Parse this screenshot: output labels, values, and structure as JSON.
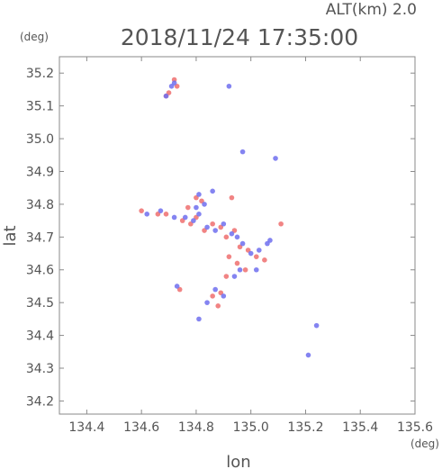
{
  "header": {
    "altitude_label": "ALT(km)  2.0",
    "timestamp": "2018/11/24 17:35:00",
    "y_unit": "(deg)",
    "x_unit": "(deg)"
  },
  "chart_data": {
    "type": "scatter",
    "title": "",
    "xlabel": "lon",
    "ylabel": "lat",
    "xlim": [
      134.3,
      135.6
    ],
    "ylim": [
      34.16,
      35.25
    ],
    "xticks": [
      "134.4",
      "134.6",
      "134.8",
      "135.0",
      "135.2",
      "135.4",
      "135.6"
    ],
    "yticks": [
      "34.2",
      "34.3",
      "34.4",
      "34.5",
      "34.6",
      "34.7",
      "34.8",
      "34.9",
      "35.0",
      "35.1",
      "35.2"
    ],
    "grid": false,
    "colors": {
      "positive": "#ef6f6f",
      "negative": "#6f6fef",
      "axis": "#8a8a8a"
    },
    "series": [
      {
        "values": [
          [
            134.7,
            35.14
          ],
          [
            134.73,
            35.16
          ],
          [
            134.72,
            35.18
          ],
          [
            134.69,
            35.13
          ],
          [
            134.6,
            34.78
          ],
          [
            134.66,
            34.77
          ],
          [
            134.69,
            34.77
          ],
          [
            134.75,
            34.75
          ],
          [
            134.78,
            34.74
          ],
          [
            134.8,
            34.76
          ],
          [
            134.83,
            34.72
          ],
          [
            134.86,
            34.74
          ],
          [
            134.89,
            34.73
          ],
          [
            134.91,
            34.7
          ],
          [
            134.94,
            34.72
          ],
          [
            134.96,
            34.67
          ],
          [
            134.99,
            34.66
          ],
          [
            135.02,
            34.64
          ],
          [
            135.05,
            34.63
          ],
          [
            134.92,
            34.64
          ],
          [
            134.95,
            34.62
          ],
          [
            134.86,
            34.52
          ],
          [
            134.89,
            34.53
          ],
          [
            134.88,
            34.49
          ],
          [
            134.8,
            34.82
          ],
          [
            134.82,
            34.81
          ],
          [
            134.77,
            34.79
          ],
          [
            134.91,
            34.58
          ],
          [
            134.98,
            34.6
          ],
          [
            134.74,
            34.54
          ],
          [
            135.11,
            34.74
          ],
          [
            134.93,
            34.82
          ]
        ]
      },
      {
        "values": [
          [
            134.69,
            35.13
          ],
          [
            134.71,
            35.16
          ],
          [
            134.92,
            35.16
          ],
          [
            134.72,
            35.17
          ],
          [
            134.62,
            34.77
          ],
          [
            134.67,
            34.78
          ],
          [
            134.72,
            34.76
          ],
          [
            134.76,
            34.76
          ],
          [
            134.79,
            34.75
          ],
          [
            134.81,
            34.77
          ],
          [
            134.84,
            34.73
          ],
          [
            134.87,
            34.72
          ],
          [
            134.9,
            34.74
          ],
          [
            134.93,
            34.71
          ],
          [
            134.95,
            34.7
          ],
          [
            134.97,
            34.68
          ],
          [
            135.0,
            34.65
          ],
          [
            135.03,
            34.66
          ],
          [
            135.06,
            34.68
          ],
          [
            135.02,
            34.6
          ],
          [
            134.96,
            34.6
          ],
          [
            134.94,
            34.58
          ],
          [
            134.87,
            34.54
          ],
          [
            134.9,
            34.52
          ],
          [
            134.84,
            34.5
          ],
          [
            134.81,
            34.83
          ],
          [
            134.83,
            34.8
          ],
          [
            134.8,
            34.79
          ],
          [
            134.86,
            34.84
          ],
          [
            135.09,
            34.94
          ],
          [
            134.97,
            34.96
          ],
          [
            134.73,
            34.55
          ],
          [
            134.81,
            34.45
          ],
          [
            135.24,
            34.43
          ],
          [
            135.21,
            34.34
          ],
          [
            135.07,
            34.69
          ]
        ]
      }
    ]
  }
}
